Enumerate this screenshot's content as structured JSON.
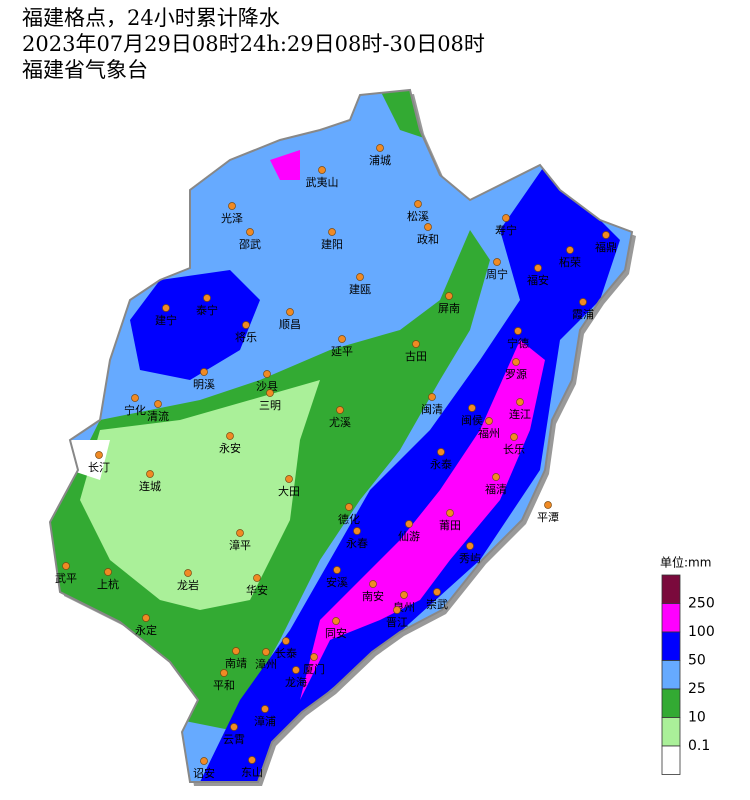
{
  "header": {
    "line1": "福建格点，24小时累计降水",
    "line2": "2023年07月29日08时24h:29日08时-30日08时",
    "line3": "福建省气象台"
  },
  "cities": [
    "武夷山",
    "浦城",
    "光泽",
    "松溪",
    "政和",
    "寿宁",
    "福鼎",
    "柘荣",
    "邵武",
    "建阳",
    "周宁",
    "福安",
    "建瓯",
    "泰宁",
    "屏南",
    "霞浦",
    "建宁",
    "将乐",
    "顺昌",
    "宁德",
    "延平",
    "古田",
    "罗源",
    "明溪",
    "沙县",
    "宁化",
    "清流",
    "三明",
    "连江",
    "闽清",
    "闽侯",
    "尤溪",
    "福州",
    "长乐",
    "永安",
    "长汀",
    "永泰",
    "连城",
    "福清",
    "大田",
    "平潭",
    "德化",
    "莆田",
    "仙游",
    "永春",
    "漳平",
    "秀屿",
    "武平",
    "上杭",
    "龙岩",
    "安溪",
    "华安",
    "南安",
    "泉州",
    "崇武",
    "晋江",
    "永定",
    "同安",
    "长泰",
    "南靖",
    "漳州",
    "厦门",
    "龙海",
    "平和",
    "漳浦",
    "云霄",
    "诏安",
    "东山"
  ],
  "legend": {
    "title": "单位:mm",
    "colors": [
      "#7a0a3c",
      "#ff00ff",
      "#0000ff",
      "#66aaff",
      "#33aa33",
      "#aaf099",
      "#ffffff"
    ],
    "labels": [
      "250",
      "100",
      "50",
      "25",
      "10",
      "0.1"
    ]
  }
}
